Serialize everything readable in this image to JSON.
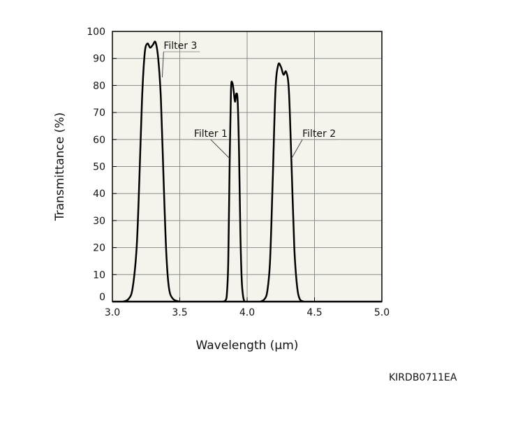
{
  "chart_data": {
    "type": "line",
    "xlabel": "Wavelength (µm)",
    "ylabel": "Transmittance (%)",
    "xlim": [
      3.0,
      5.0
    ],
    "ylim": [
      0,
      100
    ],
    "x_ticks": [
      3.0,
      3.5,
      4.0,
      4.5,
      5.0
    ],
    "x_tick_labels": [
      "3.0",
      "3.5",
      "4.0",
      "4.5",
      "5.0"
    ],
    "y_ticks": [
      0,
      10,
      20,
      30,
      40,
      50,
      60,
      70,
      80,
      90,
      100
    ],
    "y_tick_labels": [
      "0",
      "10",
      "20",
      "30",
      "40",
      "50",
      "60",
      "70",
      "80",
      "90",
      "100"
    ],
    "grid": true,
    "background_color": "#f5f4ec",
    "line_color": "#000000",
    "series": [
      {
        "name": "Filter 3",
        "x": [
          3.08,
          3.12,
          3.15,
          3.18,
          3.2,
          3.22,
          3.24,
          3.26,
          3.28,
          3.3,
          3.32,
          3.34,
          3.36,
          3.38,
          3.4,
          3.42,
          3.45,
          3.5
        ],
        "y": [
          0,
          1,
          5,
          20,
          45,
          75,
          92,
          95.5,
          94,
          95,
          96,
          90,
          75,
          45,
          18,
          5,
          1,
          0
        ]
      },
      {
        "name": "Filter 1",
        "x": [
          3.82,
          3.84,
          3.85,
          3.86,
          3.87,
          3.88,
          3.89,
          3.9,
          3.91,
          3.92,
          3.93,
          3.94,
          3.95,
          3.96,
          3.97,
          3.98
        ],
        "y": [
          0,
          0.5,
          3,
          15,
          50,
          78,
          81,
          78,
          74,
          77,
          74,
          55,
          25,
          8,
          2,
          0
        ]
      },
      {
        "name": "Filter 2",
        "x": [
          4.1,
          4.13,
          4.15,
          4.17,
          4.19,
          4.21,
          4.23,
          4.25,
          4.27,
          4.29,
          4.31,
          4.33,
          4.35,
          4.37,
          4.39,
          4.42
        ],
        "y": [
          0,
          1,
          4,
          15,
          45,
          78,
          87.5,
          87,
          84,
          85,
          78,
          50,
          20,
          6,
          1,
          0
        ]
      }
    ],
    "annotations": [
      {
        "text": "Filter 3",
        "x": 3.38,
        "y": 93.5,
        "target_x": 3.37,
        "target_y": 83,
        "anchor": "start"
      },
      {
        "text": "Filter 1",
        "x": 3.73,
        "y": 61,
        "target_x": 3.87,
        "target_y": 53,
        "anchor": "middle"
      },
      {
        "text": "Filter 2",
        "x": 4.41,
        "y": 61,
        "target_x": 4.33,
        "target_y": 53,
        "anchor": "start"
      }
    ]
  },
  "figure_code": "KIRDB0711EA"
}
